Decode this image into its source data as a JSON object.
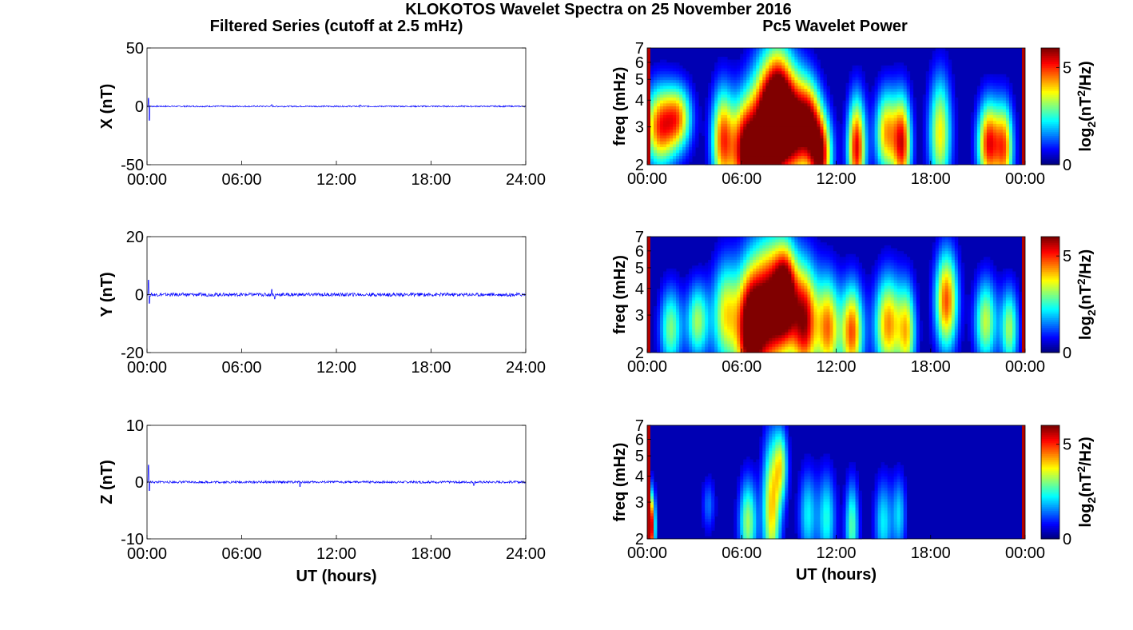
{
  "figure": {
    "title": "KLOKOTOS Wavelet Spectra on 25 November 2016",
    "left_heading": "Filtered Series (cutoff at 2.5 mHz)",
    "right_heading": "Pc5 Wavelet Power"
  },
  "chart_data": [
    {
      "type": "line",
      "ylabel": "X (nT)",
      "xlabel": "",
      "ylim": [
        -50,
        50
      ],
      "yticks": [
        "50",
        "0",
        "-50"
      ],
      "ytick_values": [
        50,
        0,
        -50
      ],
      "xticks": [
        "00:00",
        "06:00",
        "12:00",
        "18:00",
        "24:00"
      ],
      "xlim_hours": [
        0,
        24
      ],
      "series": [
        {
          "color": "#0000ff",
          "baseline": 0,
          "noise_amp": 0.6,
          "spikes": [
            [
              0.1,
              7
            ],
            [
              0.15,
              -12
            ],
            [
              7.9,
              1.5
            ],
            [
              13.5,
              1.2
            ]
          ]
        }
      ]
    },
    {
      "type": "line",
      "ylabel": "Y (nT)",
      "xlabel": "",
      "ylim": [
        -20,
        20
      ],
      "yticks": [
        "20",
        "0",
        "-20"
      ],
      "ytick_values": [
        20,
        0,
        -20
      ],
      "xticks": [
        "00:00",
        "06:00",
        "12:00",
        "18:00",
        "24:00"
      ],
      "xlim_hours": [
        0,
        24
      ],
      "series": [
        {
          "color": "#0000ff",
          "baseline": 0,
          "noise_amp": 0.6,
          "spikes": [
            [
              0.1,
              5
            ],
            [
              0.15,
              -3
            ],
            [
              7.9,
              1.8
            ],
            [
              8.1,
              -1.5
            ]
          ]
        }
      ]
    },
    {
      "type": "line",
      "ylabel": "Z (nT)",
      "xlabel": "UT (hours)",
      "ylim": [
        -10,
        10
      ],
      "yticks": [
        "10",
        "0",
        "-10"
      ],
      "ytick_values": [
        10,
        0,
        -10
      ],
      "xticks": [
        "00:00",
        "06:00",
        "12:00",
        "18:00",
        "24:00"
      ],
      "xlim_hours": [
        0,
        24
      ],
      "series": [
        {
          "color": "#0000ff",
          "baseline": 0,
          "noise_amp": 0.2,
          "spikes": [
            [
              0.1,
              3
            ],
            [
              0.15,
              -1.5
            ],
            [
              9.7,
              -0.8
            ],
            [
              20.7,
              -0.6
            ]
          ]
        }
      ]
    },
    {
      "type": "heatmap",
      "ylabel": "freq (mHz)",
      "xlabel": "",
      "yticks": [
        "7",
        "6",
        "5",
        "4",
        "3",
        "2"
      ],
      "ytick_values": [
        7,
        6,
        5,
        4,
        3,
        2
      ],
      "ylim": [
        2,
        7
      ],
      "yscale": "log",
      "xticks": [
        "00:00",
        "06:00",
        "12:00",
        "18:00",
        "00:00"
      ],
      "xlim_hours": [
        0,
        24
      ],
      "colorbar": {
        "label": "log2(nT2/Hz)",
        "ticks": [
          "5",
          "0"
        ],
        "tick_values": [
          5,
          0
        ],
        "range": [
          0,
          6
        ],
        "colormap": "jet"
      },
      "blobs": [
        {
          "t": 0.8,
          "f": 3.0,
          "p": 4.5,
          "w": 0.7,
          "h": 0.9
        },
        {
          "t": 2.0,
          "f": 3.3,
          "p": 3.6,
          "w": 0.6,
          "h": 0.8
        },
        {
          "t": 4.8,
          "f": 2.6,
          "p": 4.5,
          "w": 0.5,
          "h": 1.0
        },
        {
          "t": 6.2,
          "f": 2.3,
          "p": 5.5,
          "w": 0.6,
          "h": 0.9
        },
        {
          "t": 7.5,
          "f": 2.8,
          "p": 6.0,
          "w": 0.7,
          "h": 1.4
        },
        {
          "t": 8.4,
          "f": 3.5,
          "p": 6.0,
          "w": 0.6,
          "h": 1.6
        },
        {
          "t": 9.4,
          "f": 3.0,
          "p": 5.0,
          "w": 0.6,
          "h": 1.2
        },
        {
          "t": 10.3,
          "f": 3.2,
          "p": 4.0,
          "w": 0.5,
          "h": 1.0
        },
        {
          "t": 11.0,
          "f": 2.2,
          "p": 5.5,
          "w": 0.5,
          "h": 0.7
        },
        {
          "t": 13.3,
          "f": 2.4,
          "p": 5.2,
          "w": 0.4,
          "h": 0.9
        },
        {
          "t": 15.2,
          "f": 2.8,
          "p": 4.0,
          "w": 0.5,
          "h": 0.9
        },
        {
          "t": 16.2,
          "f": 2.5,
          "p": 4.8,
          "w": 0.4,
          "h": 0.9
        },
        {
          "t": 18.6,
          "f": 2.8,
          "p": 3.6,
          "w": 0.5,
          "h": 1.2
        },
        {
          "t": 21.7,
          "f": 2.5,
          "p": 5.0,
          "w": 0.5,
          "h": 0.8
        },
        {
          "t": 22.7,
          "f": 2.4,
          "p": 4.0,
          "w": 0.4,
          "h": 0.8
        }
      ]
    },
    {
      "type": "heatmap",
      "ylabel": "freq (mHz)",
      "xlabel": "",
      "yticks": [
        "7",
        "6",
        "5",
        "4",
        "3",
        "2"
      ],
      "ytick_values": [
        7,
        6,
        5,
        4,
        3,
        2
      ],
      "ylim": [
        2,
        7
      ],
      "yscale": "log",
      "xticks": [
        "00:00",
        "06:00",
        "12:00",
        "18:00",
        "00:00"
      ],
      "xlim_hours": [
        0,
        24
      ],
      "colorbar": {
        "label": "log2(nT2/Hz)",
        "ticks": [
          "5",
          "0"
        ],
        "tick_values": [
          5,
          0
        ],
        "range": [
          0,
          6
        ],
        "colormap": "jet"
      },
      "blobs": [
        {
          "t": 1.5,
          "f": 2.6,
          "p": 2.8,
          "w": 0.5,
          "h": 0.8
        },
        {
          "t": 3.2,
          "f": 2.8,
          "p": 3.0,
          "w": 0.5,
          "h": 0.8
        },
        {
          "t": 5.0,
          "f": 3.0,
          "p": 3.5,
          "w": 0.6,
          "h": 1.2
        },
        {
          "t": 6.5,
          "f": 2.5,
          "p": 5.8,
          "w": 0.6,
          "h": 1.2
        },
        {
          "t": 7.8,
          "f": 3.2,
          "p": 6.0,
          "w": 0.8,
          "h": 1.6
        },
        {
          "t": 8.8,
          "f": 3.8,
          "p": 4.8,
          "w": 0.5,
          "h": 1.4
        },
        {
          "t": 10.0,
          "f": 2.8,
          "p": 5.5,
          "w": 0.6,
          "h": 1.2
        },
        {
          "t": 11.5,
          "f": 2.6,
          "p": 4.2,
          "w": 0.5,
          "h": 1.0
        },
        {
          "t": 13.0,
          "f": 2.5,
          "p": 4.6,
          "w": 0.5,
          "h": 0.9
        },
        {
          "t": 15.3,
          "f": 2.7,
          "p": 4.2,
          "w": 0.6,
          "h": 1.0
        },
        {
          "t": 16.5,
          "f": 2.5,
          "p": 3.4,
          "w": 0.4,
          "h": 0.9
        },
        {
          "t": 19.0,
          "f": 3.5,
          "p": 4.6,
          "w": 0.5,
          "h": 1.3
        },
        {
          "t": 21.5,
          "f": 2.8,
          "p": 3.2,
          "w": 0.5,
          "h": 0.9
        },
        {
          "t": 23.0,
          "f": 2.6,
          "p": 3.0,
          "w": 0.4,
          "h": 0.8
        }
      ]
    },
    {
      "type": "heatmap",
      "ylabel": "freq (mHz)",
      "xlabel": "UT (hours)",
      "yticks": [
        "7",
        "6",
        "5",
        "4",
        "3",
        "2"
      ],
      "ytick_values": [
        7,
        6,
        5,
        4,
        3,
        2
      ],
      "ylim": [
        2,
        7
      ],
      "yscale": "log",
      "xticks": [
        "00:00",
        "06:00",
        "12:00",
        "18:00",
        "00:00"
      ],
      "xlim_hours": [
        0,
        24
      ],
      "colorbar": {
        "label": "log2(nT2/Hz)",
        "ticks": [
          "5",
          "0"
        ],
        "tick_values": [
          5,
          0
        ],
        "range": [
          0,
          6
        ],
        "colormap": "jet"
      },
      "blobs": [
        {
          "t": 0.2,
          "f": 2.3,
          "p": 6.0,
          "w": 0.2,
          "h": 0.6
        },
        {
          "t": 6.4,
          "f": 2.4,
          "p": 3.0,
          "w": 0.4,
          "h": 0.8
        },
        {
          "t": 7.9,
          "f": 2.8,
          "p": 3.8,
          "w": 0.4,
          "h": 1.5
        },
        {
          "t": 8.5,
          "f": 4.5,
          "p": 2.8,
          "w": 0.3,
          "h": 1.3
        },
        {
          "t": 10.2,
          "f": 2.6,
          "p": 2.0,
          "w": 0.4,
          "h": 0.9
        },
        {
          "t": 11.4,
          "f": 2.5,
          "p": 2.2,
          "w": 0.4,
          "h": 0.9
        },
        {
          "t": 13.0,
          "f": 2.3,
          "p": 2.6,
          "w": 0.3,
          "h": 0.8
        },
        {
          "t": 15.0,
          "f": 2.4,
          "p": 2.0,
          "w": 0.4,
          "h": 0.8
        },
        {
          "t": 16.0,
          "f": 2.6,
          "p": 1.8,
          "w": 0.3,
          "h": 0.8
        },
        {
          "t": 3.9,
          "f": 2.9,
          "p": 1.2,
          "w": 0.3,
          "h": 0.6
        }
      ]
    }
  ]
}
